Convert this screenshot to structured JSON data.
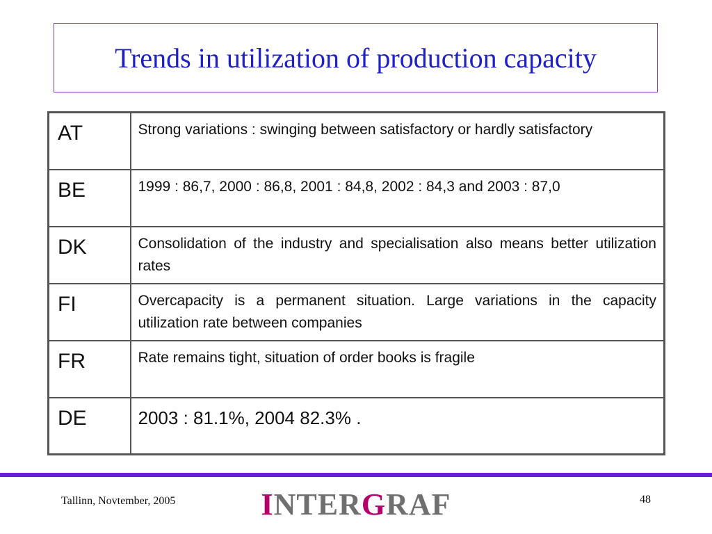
{
  "title": "Trends in utilization of production capacity",
  "rows": [
    {
      "code": "AT",
      "text": "Strong variations : swinging between satisfactory or hardly satisfactory"
    },
    {
      "code": "BE",
      "text": "1999 : 86,7,     2000 :   86,8,     2001 : 84,8,    2002 : 84,3 and 2003 : 87,0"
    },
    {
      "code": "DK",
      "text": "Consolidation of the industry and specialisation also means better utilization rates"
    },
    {
      "code": "FI",
      "text": "Overcapacity is a permanent situation. Large variations in the capacity utilization rate between companies"
    },
    {
      "code": "FR",
      "text": "Rate remains tight, situation of order books is fragile"
    },
    {
      "code": "DE",
      "text": "2003 :  81.1%, 2004  82.3% ."
    }
  ],
  "footer": {
    "location": "Tallinn, Novtember, 2005",
    "logo_i": "I",
    "logo_nter": "NTER",
    "logo_g": "G",
    "logo_raf": "RAF",
    "page": "48"
  },
  "colors": {
    "title": "#2020c8",
    "accent_line": "#6a1fe0",
    "logo_accent": "#b3006b",
    "logo_gray": "#6f6f6f"
  }
}
